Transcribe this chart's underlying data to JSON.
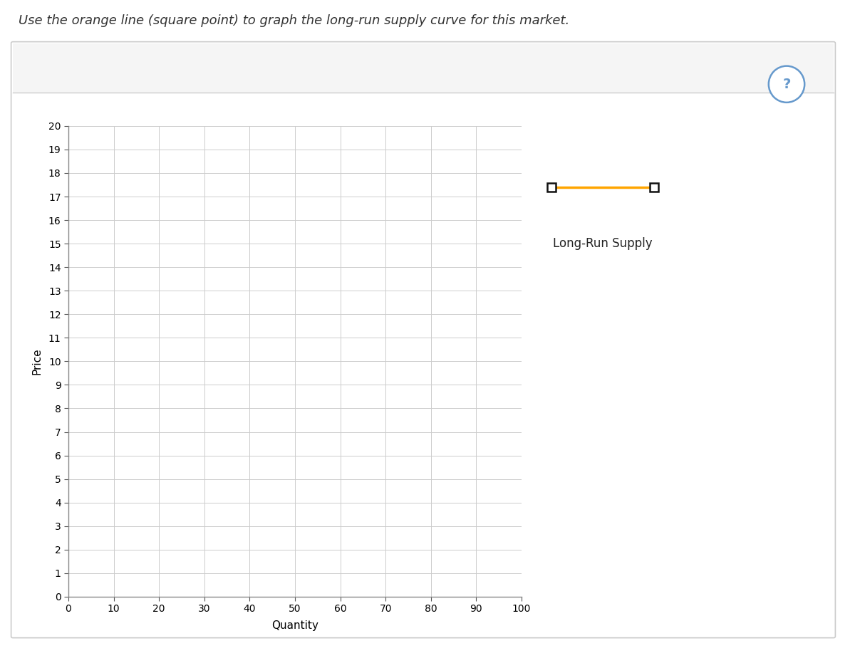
{
  "title": "Use the orange line (square point) to graph the long-run supply curve for this market.",
  "xlabel": "Quantity",
  "ylabel": "Price",
  "xlim": [
    0,
    100
  ],
  "ylim": [
    0,
    20
  ],
  "x_ticks": [
    0,
    10,
    20,
    30,
    40,
    50,
    60,
    70,
    80,
    90,
    100
  ],
  "y_ticks": [
    0,
    1,
    2,
    3,
    4,
    5,
    6,
    7,
    8,
    9,
    10,
    11,
    12,
    13,
    14,
    15,
    16,
    17,
    18,
    19,
    20
  ],
  "grid_color": "#cccccc",
  "legend_label": "Long-Run Supply",
  "line_color": "#FFA500",
  "marker": "s",
  "marker_facecolor": "white",
  "marker_edgecolor": "#111111",
  "marker_size": 9,
  "line_width": 2.5,
  "background_color": "#ffffff",
  "panel_bg": "#ffffff",
  "panel_border": "#cccccc",
  "header_bg": "#f5f5f5",
  "question_mark_color": "#6699cc",
  "title_fontsize": 13,
  "axis_label_fontsize": 11,
  "tick_fontsize": 10,
  "legend_fontsize": 12
}
